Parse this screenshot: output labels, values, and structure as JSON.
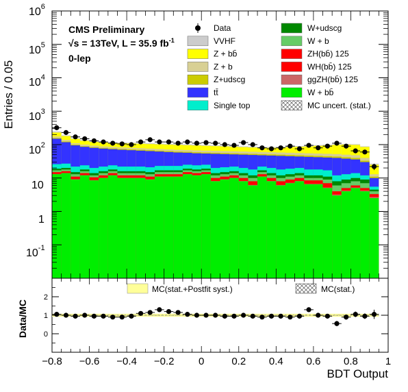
{
  "chart_data": [
    {
      "type": "area",
      "ylabel": "Entries / 0.05",
      "yscale": "log",
      "ylim": [
        0.01,
        1000000
      ],
      "xlim": [
        -0.8,
        0.95
      ],
      "annotations": {
        "experiment": "CMS Preliminary",
        "energy_prefix": "√s =  13TeV, L = 35.9 fb",
        "energy_sup": "-1",
        "channel": "0-lep"
      },
      "y_tick_labels": {
        "e6": "10",
        "e6s": "6",
        "e5": "10",
        "e5s": "5",
        "e4": "10",
        "e4s": "4",
        "e3": "10",
        "e3s": "3",
        "e2": "10",
        "e2s": "2",
        "e1": "10",
        "e0": "1",
        "em1": "10",
        "em1s": "-1"
      },
      "bin_edges": [
        -0.8,
        -0.75,
        -0.7,
        -0.65,
        -0.6,
        -0.55,
        -0.5,
        -0.45,
        -0.4,
        -0.35,
        -0.3,
        -0.25,
        -0.2,
        -0.15,
        -0.1,
        -0.05,
        0.0,
        0.05,
        0.1,
        0.15,
        0.2,
        0.25,
        0.3,
        0.35,
        0.4,
        0.45,
        0.5,
        0.55,
        0.6,
        0.65,
        0.7,
        0.75,
        0.8,
        0.85,
        0.9,
        0.95
      ],
      "stack_cumulative": [
        {
          "name": "W + bb̄",
          "color": "#00ee00",
          "values": [
            13,
            14,
            9,
            12,
            8.5,
            10,
            12,
            10,
            10,
            10,
            9,
            11,
            11,
            11,
            13,
            12,
            13,
            8,
            9,
            10,
            8,
            6,
            11,
            8,
            6,
            7,
            8,
            6.5,
            6.5,
            5,
            3,
            4,
            5,
            4,
            2.5
          ]
        },
        {
          "name": "ggZH(bb̄) 125",
          "color": "#cc6666",
          "values": [
            13.2,
            14.2,
            9.2,
            12.2,
            8.7,
            10.2,
            12.2,
            10.2,
            10.2,
            10.2,
            9.2,
            11.2,
            11.2,
            11.2,
            13.2,
            12.2,
            13.2,
            8.2,
            9.2,
            10.2,
            8.2,
            6.2,
            11.2,
            8.2,
            6.2,
            7.2,
            8.2,
            6.7,
            6.7,
            5.2,
            3.2,
            4.2,
            5.2,
            4.2,
            2.7
          ]
        },
        {
          "name": "WH(bb̄) 125",
          "color": "#ff0000",
          "values": [
            14,
            15,
            10,
            13,
            9.5,
            11,
            13,
            11,
            11,
            11,
            10,
            12,
            12,
            12,
            14,
            13,
            14,
            9,
            10,
            11,
            9,
            7,
            12,
            9,
            7,
            8,
            9,
            7.5,
            7.5,
            6,
            3.5,
            4.5,
            5.5,
            4.5,
            3
          ]
        },
        {
          "name": "ZH(bb̄) 125",
          "color": "#ff0000",
          "values": [
            15,
            16,
            11,
            14,
            10.5,
            12,
            14,
            12,
            12,
            12,
            11,
            13,
            13,
            13,
            15,
            14,
            15,
            10,
            11,
            12,
            10,
            8,
            13,
            10,
            8,
            9,
            10,
            8.5,
            8.5,
            7,
            4,
            5,
            6,
            5,
            3.3
          ]
        },
        {
          "name": "W + b",
          "color": "#66cc66",
          "values": [
            17,
            18,
            13,
            16,
            12,
            14,
            16,
            14,
            14,
            14,
            13,
            15,
            15,
            15,
            17,
            16,
            17,
            12,
            13,
            14,
            12,
            10,
            15,
            12,
            10,
            11,
            12,
            10,
            10,
            9,
            6,
            7,
            8,
            7,
            4
          ]
        },
        {
          "name": "W+udscg",
          "color": "#008800",
          "values": [
            19,
            20,
            15,
            18,
            14,
            16,
            18,
            16,
            16,
            16,
            15,
            17,
            17,
            17,
            19,
            18,
            19,
            14,
            15,
            16,
            14,
            12,
            17,
            14,
            12,
            13,
            14,
            12,
            12,
            11,
            8,
            9,
            10,
            9,
            4.5
          ]
        },
        {
          "name": "Single top",
          "color": "#00eecc",
          "values": [
            26,
            27,
            22,
            24,
            20,
            22,
            24,
            22,
            22,
            22,
            21,
            23,
            23,
            23,
            25,
            24,
            25,
            20,
            21,
            22,
            20,
            18,
            22,
            20,
            18,
            19,
            20,
            18,
            18,
            17,
            12,
            13,
            14,
            12,
            5.5
          ]
        },
        {
          "name": "tt̄",
          "color": "#3333ff",
          "values": [
            150,
            118,
            95,
            86,
            80,
            76,
            73,
            70,
            68,
            66,
            64,
            62,
            60,
            58,
            57,
            55,
            54,
            53,
            52,
            51,
            50,
            49,
            48,
            47,
            46,
            45,
            44,
            43,
            42,
            41,
            40,
            38,
            36,
            30,
            10
          ]
        },
        {
          "name": "Z+udscg",
          "color": "#cccc00",
          "values": [
            158,
            124,
            100,
            90,
            84,
            80,
            77,
            74,
            72,
            70,
            68,
            66,
            64,
            62,
            61,
            59,
            58,
            57,
            56,
            55,
            54,
            53,
            52,
            51,
            50,
            49,
            48,
            47,
            46,
            45,
            44,
            42,
            40,
            33,
            11
          ]
        },
        {
          "name": "Z + b",
          "color": "#d8d094",
          "values": [
            175,
            138,
            110,
            100,
            93,
            88,
            85,
            82,
            80,
            78,
            76,
            74,
            72,
            70,
            69,
            67,
            66,
            65,
            64,
            63,
            62,
            61,
            60,
            59,
            58,
            57,
            56,
            55,
            54,
            53,
            52,
            50,
            48,
            40,
            13
          ]
        },
        {
          "name": "Z + bb̄",
          "color": "#ffff00",
          "values": [
            230,
            180,
            148,
            130,
            120,
            115,
            112,
            110,
            108,
            106,
            104,
            102,
            100,
            98,
            96,
            94,
            92,
            90,
            88,
            86,
            84,
            82,
            80,
            80,
            82,
            84,
            86,
            88,
            92,
            95,
            98,
            100,
            98,
            85,
            25
          ]
        },
        {
          "name": "VVHF",
          "color": "#cccccc",
          "values": [
            250,
            190,
            155,
            138,
            127,
            121,
            118,
            116,
            114,
            112,
            110,
            108,
            106,
            104,
            102,
            100,
            98,
            95,
            93,
            91,
            89,
            87,
            85,
            85,
            87,
            89,
            91,
            93,
            97,
            100,
            103,
            105,
            103,
            89,
            27
          ]
        }
      ],
      "data": {
        "name": "Data",
        "x": [
          -0.775,
          -0.725,
          -0.675,
          -0.625,
          -0.575,
          -0.525,
          -0.475,
          -0.425,
          -0.375,
          -0.325,
          -0.275,
          -0.225,
          -0.175,
          -0.125,
          -0.075,
          -0.025,
          0.025,
          0.075,
          0.125,
          0.175,
          0.225,
          0.275,
          0.325,
          0.375,
          0.425,
          0.475,
          0.525,
          0.575,
          0.625,
          0.675,
          0.725,
          0.775,
          0.825,
          0.875,
          0.925
        ],
        "y": [
          320,
          230,
          170,
          150,
          130,
          120,
          110,
          105,
          100,
          120,
          140,
          120,
          120,
          110,
          120,
          110,
          115,
          110,
          100,
          95,
          115,
          100,
          80,
          75,
          80,
          90,
          75,
          95,
          80,
          90,
          110,
          90,
          65,
          60,
          22
        ]
      },
      "legend": {
        "col1": [
          {
            "label": "Data",
            "style": "marker"
          },
          {
            "label": "VVHF",
            "color": "#cccccc"
          },
          {
            "label": "Z + bb̄",
            "color": "#ffff00"
          },
          {
            "label": "Z + b",
            "color": "#d8d094"
          },
          {
            "label": "Z+udscg",
            "color": "#cccc00"
          },
          {
            "label": "tt̄",
            "color": "#3333ff"
          },
          {
            "label": "Single top",
            "color": "#00eecc"
          }
        ],
        "col2": [
          {
            "label": "W+udscg",
            "color": "#008800"
          },
          {
            "label": "W + b",
            "color": "#66cc66"
          },
          {
            "label": "ZH(bb̄) 125",
            "color": "#ff0000"
          },
          {
            "label": "WH(bb̄) 125",
            "color": "#ff0000"
          },
          {
            "label": "ggZH(bb̄) 125",
            "color": "#cc6666"
          },
          {
            "label": "W + bb̄",
            "color": "#00ee00"
          },
          {
            "label": "MC uncert. (stat.)",
            "style": "hatch"
          }
        ]
      }
    },
    {
      "type": "scatter",
      "ylabel": "Data/MC",
      "xlabel": "BDT Output",
      "xlim": [
        -0.8,
        1.0
      ],
      "ylim": [
        -1,
        3
      ],
      "x_tick_labels": [
        "−0.8",
        "−0.6",
        "−0.4",
        "−0.2",
        "0",
        "0.2",
        "0.4",
        "0.6",
        "0.8",
        "1"
      ],
      "x_ticks": [
        -0.8,
        -0.6,
        -0.4,
        -0.2,
        0,
        0.2,
        0.4,
        0.6,
        0.8,
        1.0
      ],
      "y_tick_labels": [
        "0",
        "1",
        "2"
      ],
      "y_ticks": [
        0,
        1,
        2
      ],
      "legend": [
        {
          "label": "MC(stat.+Postfit syst.)",
          "color": "#ffff99"
        },
        {
          "label": "MC(stat.)",
          "style": "hatch"
        }
      ],
      "band_halfwidth": 0.08,
      "ratio": {
        "x": [
          -0.775,
          -0.725,
          -0.675,
          -0.625,
          -0.575,
          -0.525,
          -0.475,
          -0.425,
          -0.375,
          -0.325,
          -0.275,
          -0.225,
          -0.175,
          -0.125,
          -0.075,
          -0.025,
          0.025,
          0.075,
          0.125,
          0.175,
          0.225,
          0.275,
          0.325,
          0.375,
          0.425,
          0.475,
          0.525,
          0.575,
          0.625,
          0.675,
          0.725,
          0.775,
          0.825,
          0.875,
          0.925
        ],
        "y": [
          1.05,
          1.0,
          0.95,
          1.0,
          0.95,
          0.95,
          0.9,
          0.9,
          0.95,
          1.1,
          1.15,
          1.3,
          1.2,
          1.15,
          1.05,
          1.0,
          1.0,
          1.0,
          0.95,
          0.95,
          1.0,
          0.95,
          0.9,
          0.95,
          0.95,
          0.9,
          0.95,
          1.3,
          1.0,
          0.95,
          0.55,
          0.9,
          1.05,
          0.95,
          1.05
        ],
        "err": [
          0.08,
          0.08,
          0.08,
          0.09,
          0.09,
          0.1,
          0.1,
          0.1,
          0.1,
          0.1,
          0.1,
          0.1,
          0.1,
          0.1,
          0.1,
          0.1,
          0.1,
          0.1,
          0.1,
          0.1,
          0.1,
          0.1,
          0.12,
          0.12,
          0.12,
          0.12,
          0.12,
          0.12,
          0.12,
          0.12,
          0.14,
          0.14,
          0.15,
          0.15,
          0.25
        ]
      }
    }
  ]
}
